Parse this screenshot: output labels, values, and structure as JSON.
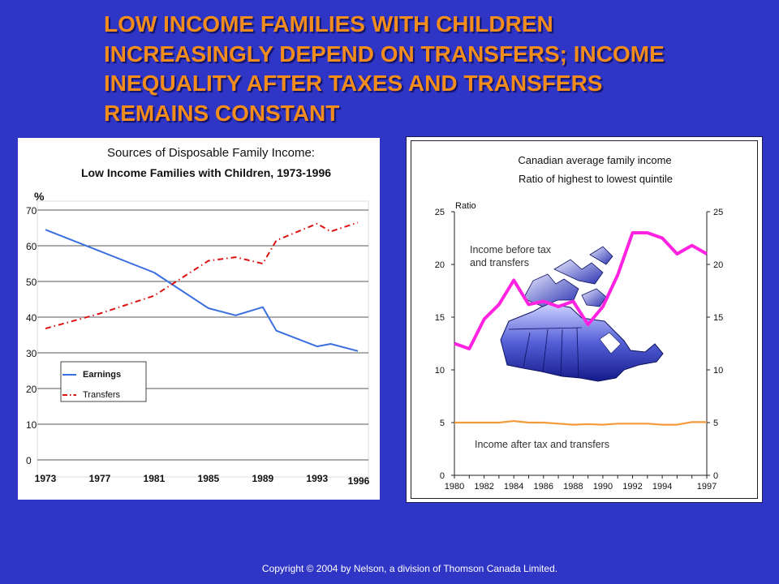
{
  "slide": {
    "title_lines": [
      "LOW INCOME FAMILIES WITH CHILDREN",
      "INCREASINGLY DEPEND ON TRANSFERS; INCOME",
      "INEQUALITY AFTER TAXES AND TRANSFERS",
      "REMAINS CONSTANT"
    ],
    "copyright": "Copyright © 2004 by Nelson, a division of Thomson Canada Limited.",
    "colors": {
      "background": "#2f35c4",
      "title": "#f28c1c"
    }
  },
  "chart_data": [
    {
      "type": "line",
      "title": "Sources of Disposable Family Income:",
      "subtitle": "Low Income Families with Children, 1973-1996",
      "ylabel": "%",
      "ylim": [
        0,
        70
      ],
      "yticks": [
        "0",
        "10",
        "20",
        "30",
        "40",
        "50",
        "60",
        "70"
      ],
      "xlim": [
        1973,
        1996
      ],
      "xticks": [
        "1973",
        "1977",
        "1981",
        "1985",
        "1989",
        "1993",
        "1996"
      ],
      "grid": "horizontal",
      "legend_position": "left, lower middle",
      "series": [
        {
          "name": "Earnings",
          "color": "#3a6fe0",
          "style": "solid",
          "x": [
            1973,
            1977,
            1981,
            1985,
            1987,
            1989,
            1990,
            1993,
            1994,
            1996
          ],
          "y": [
            64.5,
            58.5,
            52.5,
            42.5,
            40.5,
            42.8,
            36.2,
            31.8,
            32.5,
            30.5
          ]
        },
        {
          "name": "Transfers",
          "color": "#dd1111",
          "style": "dash-dot",
          "x": [
            1973,
            1977,
            1981,
            1985,
            1987,
            1989,
            1990,
            1993,
            1994,
            1996
          ],
          "y": [
            36.8,
            41.0,
            46.0,
            55.8,
            56.8,
            55.0,
            61.5,
            66.2,
            64.0,
            66.5
          ]
        }
      ]
    },
    {
      "type": "line",
      "title": "Canadian average family income",
      "subtitle": "Ratio of highest to lowest quintile",
      "ylabel": "Ratio",
      "ylim": [
        0,
        25
      ],
      "yticks": [
        "0",
        "5",
        "10",
        "15",
        "20",
        "25"
      ],
      "xlim": [
        1980,
        1997
      ],
      "xticks": [
        "1980",
        "1982",
        "1984",
        "1986",
        "1988",
        "1990",
        "1992",
        "1994",
        "1997"
      ],
      "grid": false,
      "has_map_image": true,
      "series": [
        {
          "name": "Income before tax and transfers",
          "color": "#ff22e0",
          "x": [
            1980,
            1981,
            1982,
            1983,
            1984,
            1985,
            1986,
            1987,
            1988,
            1989,
            1990,
            1991,
            1992,
            1993,
            1994,
            1995,
            1996,
            1997
          ],
          "y": [
            12.5,
            12.0,
            14.8,
            16.2,
            18.5,
            16.2,
            16.5,
            16.0,
            16.5,
            14.3,
            16.0,
            19.0,
            23.0,
            23.0,
            22.5,
            21.0,
            21.8,
            21.0
          ]
        },
        {
          "name": "Income after tax and transfers",
          "color": "#f59a3a",
          "x": [
            1980,
            1981,
            1982,
            1983,
            1984,
            1985,
            1986,
            1987,
            1988,
            1989,
            1990,
            1991,
            1992,
            1993,
            1994,
            1995,
            1996,
            1997
          ],
          "y": [
            5.0,
            5.0,
            5.0,
            5.0,
            5.15,
            5.0,
            5.0,
            4.9,
            4.8,
            4.85,
            4.8,
            4.9,
            4.9,
            4.9,
            4.8,
            4.8,
            5.05,
            5.05
          ]
        }
      ]
    }
  ]
}
